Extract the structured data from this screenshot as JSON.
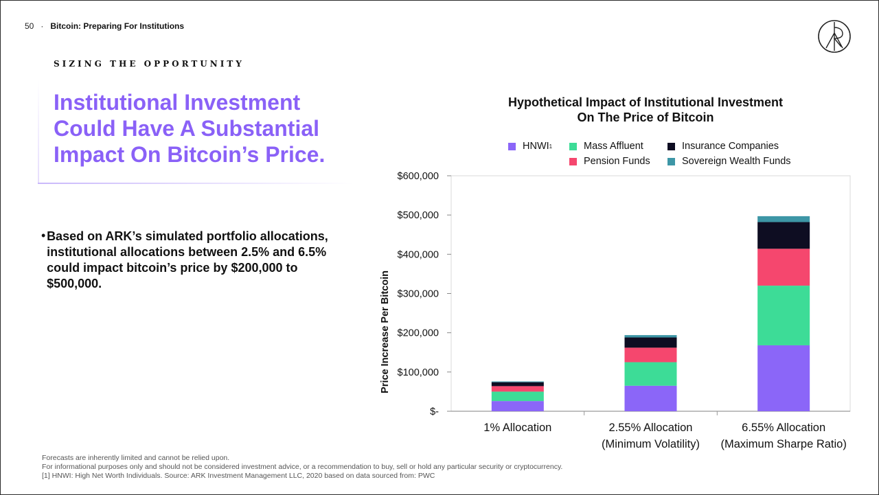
{
  "header": {
    "page_number": "50",
    "separator": "·",
    "title": "Bitcoin: Preparing For Institutions"
  },
  "kicker": "SIZING THE OPPORTUNITY",
  "headline": [
    "Institutional Investment",
    "Could Have A Substantial",
    "Impact On Bitcoin’s Price."
  ],
  "bullet": {
    "marker": "•",
    "text": "Based on ARK’s simulated portfolio allocations, institutional allocations between 2.5% and 6.5% could impact bitcoin’s price by $200,000 to $500,000."
  },
  "footer": [
    "Forecasts are inherently limited and cannot be relied upon.",
    "For informational purposes only and should not be considered investment advice, or a recommendation to buy, sell or hold any particular security or cryptocurrency.",
    "[1] HNWI: High Net Worth Individuals. Source: ARK Investment Management LLC, 2020 based on data sourced from: PWC"
  ],
  "colors": {
    "accent": "#8a61f7",
    "hnwi": "#8b66f8",
    "mass_affluent": "#3ddc97",
    "pension": "#f5476e",
    "insurance": "#0e0d22",
    "sovereign": "#3d96a6"
  },
  "legend": {
    "hnwi": "HNWI",
    "hnwi_sup": "1",
    "mass_affluent": "Mass Affluent",
    "pension": "Pension Funds",
    "insurance": "Insurance Companies",
    "sovereign": "Sovereign Wealth Funds"
  },
  "chart_data": {
    "type": "bar",
    "stacked": true,
    "title": "Hypothetical Impact of Institutional Investment On The Price of Bitcoin",
    "title_lines": [
      "Hypothetical Impact of Institutional Investment",
      "On The Price of Bitcoin"
    ],
    "ylabel": "Price Increase Per Bitcoin",
    "xlabel": "",
    "ylim": [
      0,
      600000
    ],
    "yticks": [
      0,
      100000,
      200000,
      300000,
      400000,
      500000,
      600000
    ],
    "ytick_labels": [
      "$-",
      "$100,000",
      "$200,000",
      "$300,000",
      "$400,000",
      "$500,000",
      "$600,000"
    ],
    "categories": [
      [
        "1% Allocation"
      ],
      [
        "2.55% Allocation",
        "(Minimum Volatility)"
      ],
      [
        "6.55% Allocation",
        "(Maximum Sharpe Ratio)"
      ]
    ],
    "series": [
      {
        "name": "HNWI",
        "color": "#8b66f8",
        "values": [
          26000,
          65000,
          168000
        ]
      },
      {
        "name": "Mass Affluent",
        "color": "#3ddc97",
        "values": [
          24000,
          60000,
          152000
        ]
      },
      {
        "name": "Pension Funds",
        "color": "#f5476e",
        "values": [
          14000,
          37000,
          94000
        ]
      },
      {
        "name": "Insurance Companies",
        "color": "#0e0d22",
        "values": [
          10000,
          26000,
          68000
        ]
      },
      {
        "name": "Sovereign Wealth Funds",
        "color": "#3d96a6",
        "values": [
          2000,
          6000,
          15000
        ]
      }
    ],
    "grid": false,
    "legend_position": "top"
  }
}
